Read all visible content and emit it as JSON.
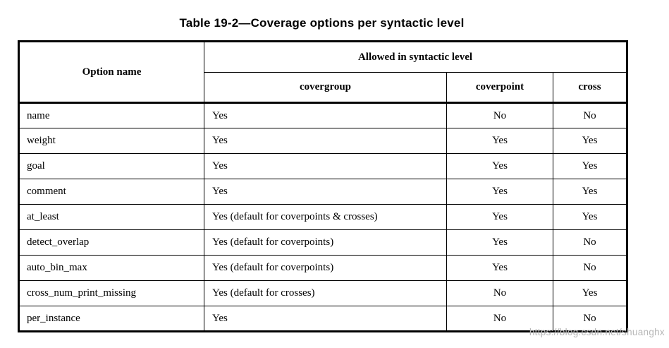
{
  "title": "Table 19-2—Coverage options per syntactic level",
  "table": {
    "header": {
      "option_name": "Option name",
      "allowed_group": "Allowed in syntactic level",
      "columns": [
        "covergroup",
        "coverpoint",
        "cross"
      ]
    },
    "rows": [
      {
        "option": "name",
        "covergroup": "Yes",
        "coverpoint": "No",
        "cross": "No"
      },
      {
        "option": "weight",
        "covergroup": "Yes",
        "coverpoint": "Yes",
        "cross": "Yes"
      },
      {
        "option": "goal",
        "covergroup": "Yes",
        "coverpoint": "Yes",
        "cross": "Yes"
      },
      {
        "option": "comment",
        "covergroup": "Yes",
        "coverpoint": "Yes",
        "cross": "Yes"
      },
      {
        "option": "at_least",
        "covergroup": "Yes (default for coverpoints & crosses)",
        "coverpoint": "Yes",
        "cross": "Yes"
      },
      {
        "option": "detect_overlap",
        "covergroup": "Yes (default for coverpoints)",
        "coverpoint": "Yes",
        "cross": "No"
      },
      {
        "option": "auto_bin_max",
        "covergroup": "Yes (default for coverpoints)",
        "coverpoint": "Yes",
        "cross": "No"
      },
      {
        "option": "cross_num_print_missing",
        "covergroup": "Yes (default for crosses)",
        "coverpoint": "No",
        "cross": "Yes"
      },
      {
        "option": "per_instance",
        "covergroup": "Yes",
        "coverpoint": "No",
        "cross": "No"
      }
    ]
  },
  "watermark": "https://blog.csdn.net/shuanghx",
  "colors": {
    "background": "#ffffff",
    "border": "#000000",
    "text": "#000000",
    "watermark": "#b7b7b7"
  }
}
